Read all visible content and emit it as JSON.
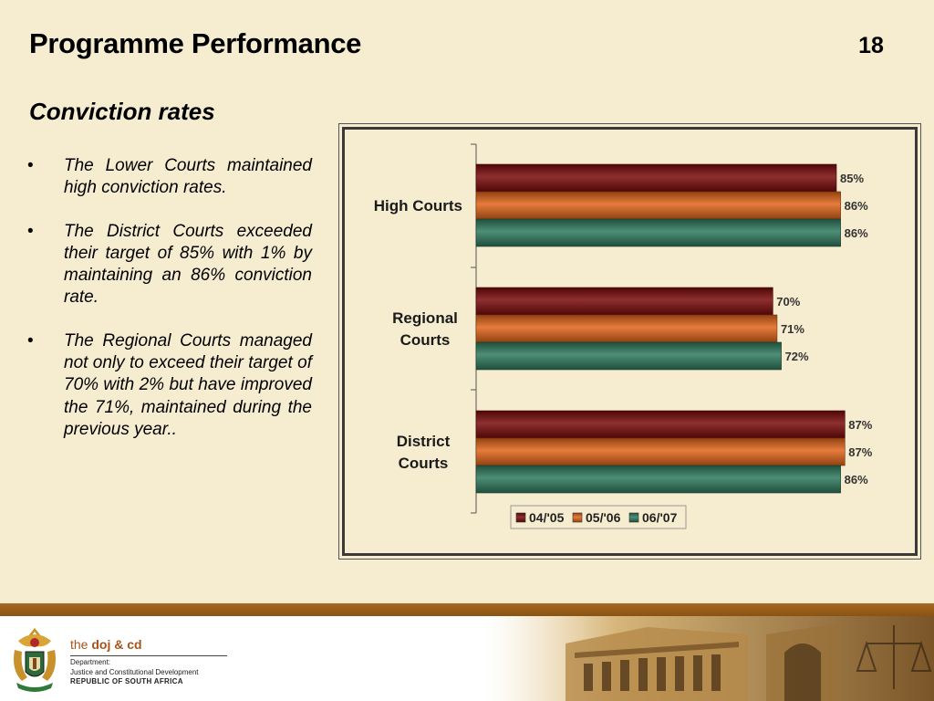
{
  "slide": {
    "title": "Programme Performance",
    "number": "18",
    "subtitle": "Conviction rates"
  },
  "bullets": [
    {
      "marker": "•",
      "text": "The Lower Courts maintained high conviction rates."
    },
    {
      "marker": "•",
      "text": " The District Courts exceeded their target of 85% with 1% by maintaining an 86% conviction rate."
    },
    {
      "marker": "•",
      "text": "The Regional Courts managed not only to exceed their target of 70% with 2% but have improved the 71%, maintained during the previous year.."
    }
  ],
  "chart_data": {
    "type": "bar",
    "orientation": "horizontal",
    "categories": [
      "High Courts",
      "Regional Courts",
      "District Courts"
    ],
    "series": [
      {
        "name": "04/'05",
        "values": [
          85,
          70,
          87
        ],
        "labels": [
          "85%",
          "70%",
          "87%"
        ],
        "color": "#7a0a0a"
      },
      {
        "name": "05/'06",
        "values": [
          86,
          71,
          87
        ],
        "labels": [
          "86%",
          "71%",
          "87%"
        ],
        "color": "#e0651a"
      },
      {
        "name": "06/'07",
        "values": [
          86,
          72,
          86
        ],
        "labels": [
          "86%",
          "72%",
          "86%"
        ],
        "color": "#2f7a5e"
      }
    ],
    "xlim": [
      0,
      100
    ],
    "grid": false,
    "legend_position": "bottom"
  },
  "footer": {
    "logo_prefix": "the",
    "logo_name": "doj & cd",
    "dept_line1": "Department:",
    "dept_line2": "Justice and Constitutional Development",
    "dept_line3": "REPUBLIC OF SOUTH AFRICA"
  },
  "colors": {
    "background": "#f6ecd0",
    "footer_band": "#9a5f19",
    "logo_text": "#a5541a"
  }
}
